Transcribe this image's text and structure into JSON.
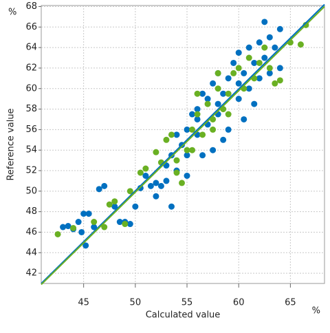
{
  "chart_data": {
    "type": "scatter",
    "x_label": "Calculated value",
    "y_label": "Reference value",
    "x_unit": "%",
    "y_unit": "%",
    "xlim": [
      40.9,
      68.3
    ],
    "ylim": [
      41,
      68.1
    ],
    "xticks": [
      45,
      50,
      55,
      60,
      65
    ],
    "yticks": [
      42,
      44,
      46,
      48,
      50,
      52,
      54,
      56,
      58,
      60,
      62,
      64,
      66,
      68
    ],
    "grid": true,
    "series": [
      {
        "color": "#0070c0",
        "x": [
          43,
          43.5,
          44,
          44.5,
          45,
          45.5,
          44.8,
          45.2,
          46,
          46.5,
          47,
          48,
          48.5,
          49,
          49.5,
          50,
          50.5,
          51,
          51.5,
          52,
          52.5,
          53,
          53.5,
          53,
          54,
          54.5,
          55,
          55,
          55.5,
          56,
          56,
          56.5,
          57,
          57,
          57.5,
          58,
          58,
          58.5,
          59,
          59,
          59.5,
          60,
          60,
          60.5,
          61,
          61,
          61.5,
          62,
          62,
          62.5,
          63,
          63,
          63.5,
          64,
          64,
          62.5,
          60.5,
          58.5,
          57.5,
          56.5,
          55,
          53.5,
          52,
          54,
          56,
          58,
          60,
          61.5
        ],
        "y": [
          46.5,
          46.6,
          46.3,
          47,
          47.8,
          47.8,
          46,
          44.7,
          46.5,
          50.2,
          50.5,
          48.5,
          47,
          47,
          46.8,
          48.5,
          50.3,
          51.5,
          50.5,
          49.5,
          50.5,
          52.5,
          53.5,
          51,
          52,
          54.5,
          56,
          53.5,
          57.5,
          55.5,
          58,
          59.5,
          56.5,
          59,
          60.5,
          57.5,
          61.5,
          59.5,
          61,
          56,
          62.5,
          59,
          63.5,
          61.5,
          60,
          64,
          62.5,
          61,
          64.5,
          63,
          65,
          61.5,
          64,
          65.8,
          62,
          66.5,
          57,
          55,
          54,
          53.5,
          51.5,
          48.5,
          50.8,
          55.5,
          57,
          58.5,
          60.5,
          58.5
        ]
      },
      {
        "color": "#6ab023",
        "x": [
          42.5,
          44,
          46,
          47,
          47.5,
          48,
          49,
          49.5,
          50.5,
          51,
          52,
          52.5,
          53,
          53.5,
          54,
          54.5,
          55,
          55.5,
          56,
          56.5,
          57,
          57.5,
          58,
          58.5,
          59,
          59.5,
          60,
          60.5,
          61,
          61.5,
          62,
          62.5,
          63,
          63.5,
          64,
          65,
          66,
          66.5,
          59,
          57.5,
          55.5,
          54,
          56,
          58
        ],
        "y": [
          45.8,
          46.4,
          47,
          46.5,
          48.7,
          49,
          46.8,
          50,
          51.8,
          52.2,
          53.8,
          52.8,
          55,
          55.5,
          51.8,
          50.8,
          54,
          56,
          57.5,
          55.5,
          58.5,
          57,
          60,
          58,
          59.5,
          61.5,
          62,
          60,
          63,
          61,
          62.5,
          64,
          62,
          60.5,
          60.8,
          64.5,
          64.3,
          66.2,
          57.5,
          56,
          54,
          53,
          59.5,
          61.5
        ]
      }
    ],
    "lines": [
      {
        "color": "#0070c0",
        "x": [
          40.9,
          68.3
        ],
        "y": [
          41.0,
          68.2
        ]
      },
      {
        "color": "#6ab023",
        "x": [
          40.9,
          68.3
        ],
        "y": [
          40.9,
          68.0
        ]
      }
    ]
  }
}
